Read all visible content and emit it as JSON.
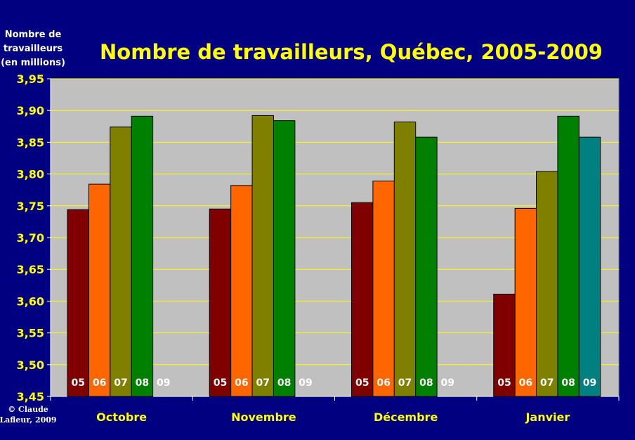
{
  "chart_data": {
    "type": "bar",
    "title": "Nombre de travailleurs, Québec, 2005-2009",
    "ylabel_lines": [
      "Nombre de",
      "travailleurs",
      "(en millions)"
    ],
    "xlabel": "",
    "ylim": [
      3.45,
      3.95
    ],
    "yticks": [
      "3,45",
      "3,50",
      "3,55",
      "3,60",
      "3,65",
      "3,70",
      "3,75",
      "3,80",
      "3,85",
      "3,90",
      "3,95"
    ],
    "categories": [
      "Octobre",
      "Novembre",
      "Décembre",
      "Janvier"
    ],
    "series": [
      {
        "name": "05",
        "color": "#800000",
        "values": [
          3.744,
          3.745,
          3.755,
          3.611
        ]
      },
      {
        "name": "06",
        "color": "#FF6600",
        "values": [
          3.784,
          3.782,
          3.789,
          3.746
        ]
      },
      {
        "name": "07",
        "color": "#808000",
        "values": [
          3.874,
          3.892,
          3.882,
          3.804
        ]
      },
      {
        "name": "08",
        "color": "#008000",
        "values": [
          3.891,
          3.884,
          3.858,
          3.891
        ]
      },
      {
        "name": "09",
        "color": "#008080",
        "values": [
          null,
          null,
          null,
          3.858
        ]
      }
    ],
    "grid": true,
    "plot_background": "#C0C0C0",
    "gridline_color": "#FFFF00"
  },
  "copyright_lines": [
    "© Claude",
    "Lafleur, 2009"
  ]
}
